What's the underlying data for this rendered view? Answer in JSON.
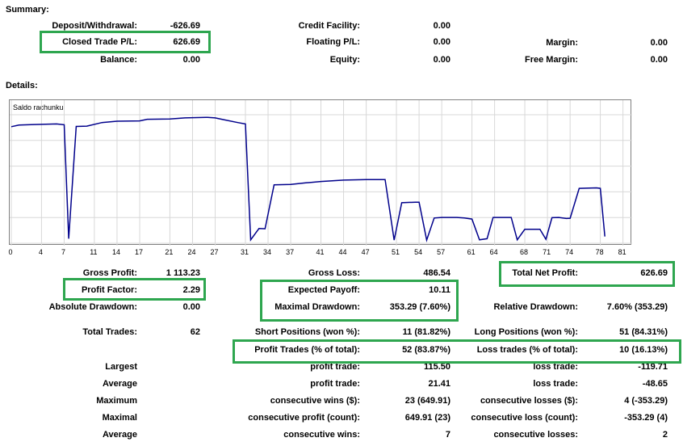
{
  "summary": {
    "heading": "Summary:",
    "deposit_label": "Deposit/Withdrawal:",
    "deposit_value": "-626.69",
    "closed_label": "Closed Trade P/L:",
    "closed_value": "626.69",
    "balance_label": "Balance:",
    "balance_value": "0.00",
    "credit_label": "Credit Facility:",
    "credit_value": "0.00",
    "floating_label": "Floating P/L:",
    "floating_value": "0.00",
    "equity_label": "Equity:",
    "equity_value": "0.00",
    "margin_label": "Margin:",
    "margin_value": "0.00",
    "free_margin_label": "Free Margin:",
    "free_margin_value": "0.00"
  },
  "details": {
    "heading": "Details:",
    "chart_title": "Saldo rachunku"
  },
  "chart_data": {
    "type": "line",
    "title": "Saldo rachunku",
    "x_ticks": [
      "0",
      "4",
      "7",
      "11",
      "14",
      "17",
      "21",
      "24",
      "27",
      "31",
      "34",
      "37",
      "41",
      "44",
      "47",
      "51",
      "54",
      "57",
      "61",
      "64",
      "68",
      "71",
      "74",
      "78",
      "81"
    ],
    "y_ticks": [
      "4423",
      "3494",
      "2564",
      "1635",
      "706",
      "-223"
    ],
    "ylim": [
      -223,
      4423
    ],
    "xlim": [
      0,
      82
    ],
    "grid": true,
    "series": [
      {
        "color": "#00008b",
        "points": [
          [
            0,
            3990
          ],
          [
            1,
            4050
          ],
          [
            3,
            4070
          ],
          [
            6,
            4090
          ],
          [
            7,
            4060
          ],
          [
            7.6,
            -60
          ],
          [
            8.6,
            4000
          ],
          [
            10,
            4010
          ],
          [
            12,
            4140
          ],
          [
            14,
            4190
          ],
          [
            17,
            4200
          ],
          [
            18,
            4260
          ],
          [
            21,
            4270
          ],
          [
            23,
            4310
          ],
          [
            26,
            4330
          ],
          [
            27,
            4310
          ],
          [
            28,
            4250
          ],
          [
            30,
            4140
          ],
          [
            31,
            4090
          ],
          [
            31.7,
            -100
          ],
          [
            32.8,
            310
          ],
          [
            33.6,
            300
          ],
          [
            34.8,
            1890
          ],
          [
            37,
            1900
          ],
          [
            39,
            1960
          ],
          [
            41,
            2010
          ],
          [
            44,
            2060
          ],
          [
            47,
            2080
          ],
          [
            48,
            2080
          ],
          [
            49.5,
            2080
          ],
          [
            50.7,
            -110
          ],
          [
            51.7,
            1240
          ],
          [
            53.5,
            1260
          ],
          [
            54,
            1260
          ],
          [
            55,
            -110
          ],
          [
            56,
            690
          ],
          [
            57,
            710
          ],
          [
            58.5,
            710
          ],
          [
            59,
            710
          ],
          [
            60,
            690
          ],
          [
            61,
            650
          ],
          [
            62,
            -100
          ],
          [
            63,
            -60
          ],
          [
            63.8,
            710
          ],
          [
            65,
            710
          ],
          [
            66.2,
            710
          ],
          [
            67,
            -100
          ],
          [
            68,
            280
          ],
          [
            69,
            280
          ],
          [
            70,
            280
          ],
          [
            70.8,
            -80
          ],
          [
            71.6,
            700
          ],
          [
            72.5,
            710
          ],
          [
            73.5,
            670
          ],
          [
            74,
            680
          ],
          [
            75.2,
            1760
          ],
          [
            76.5,
            1770
          ],
          [
            77.5,
            1780
          ],
          [
            78,
            1760
          ],
          [
            78.6,
            20
          ]
        ]
      }
    ]
  },
  "stats": {
    "gross_profit_label": "Gross Profit:",
    "gross_profit_value": "1 113.23",
    "gross_loss_label": "Gross Loss:",
    "gross_loss_value": "486.54",
    "total_net_label": "Total Net Profit:",
    "total_net_value": "626.69",
    "profit_factor_label": "Profit Factor:",
    "profit_factor_value": "2.29",
    "expected_payoff_label": "Expected Payoff:",
    "expected_payoff_value": "10.11",
    "abs_drawdown_label": "Absolute Drawdown:",
    "abs_drawdown_value": "0.00",
    "max_drawdown_label": "Maximal Drawdown:",
    "max_drawdown_value": "353.29 (7.60%)",
    "rel_drawdown_label": "Relative Drawdown:",
    "rel_drawdown_value": "7.60% (353.29)",
    "total_trades_label": "Total Trades:",
    "total_trades_value": "62",
    "short_label": "Short Positions (won %):",
    "short_value": "11 (81.82%)",
    "long_label": "Long Positions (won %):",
    "long_value": "51 (84.31%)",
    "profit_trades_label": "Profit Trades (% of total):",
    "profit_trades_value": "52 (83.87%)",
    "loss_trades_label": "Loss trades (% of total):",
    "loss_trades_value": "10 (16.13%)",
    "largest_label": "Largest",
    "largest_profit_label": "profit trade:",
    "largest_profit_value": "115.50",
    "largest_loss_label": "loss trade:",
    "largest_loss_value": "-119.71",
    "average_label": "Average",
    "average_profit_label": "profit trade:",
    "average_profit_value": "21.41",
    "average_loss_label": "loss trade:",
    "average_loss_value": "-48.65",
    "maximum_label": "Maximum",
    "max_wins_label": "consecutive wins ($):",
    "max_wins_value": "23 (649.91)",
    "max_losses_label": "consecutive losses ($):",
    "max_losses_value": "4 (-353.29)",
    "maximal_label": "Maximal",
    "maximal_profit_label": "consecutive profit (count):",
    "maximal_profit_value": "649.91 (23)",
    "maximal_loss_label": "consecutive loss (count):",
    "maximal_loss_value": "-353.29 (4)",
    "average2_label": "Average",
    "avg_wins_label": "consecutive wins:",
    "avg_wins_value": "7",
    "avg_losses_label": "consecutive losses:",
    "avg_losses_value": "2"
  },
  "highlight_color": "#2ea64f"
}
